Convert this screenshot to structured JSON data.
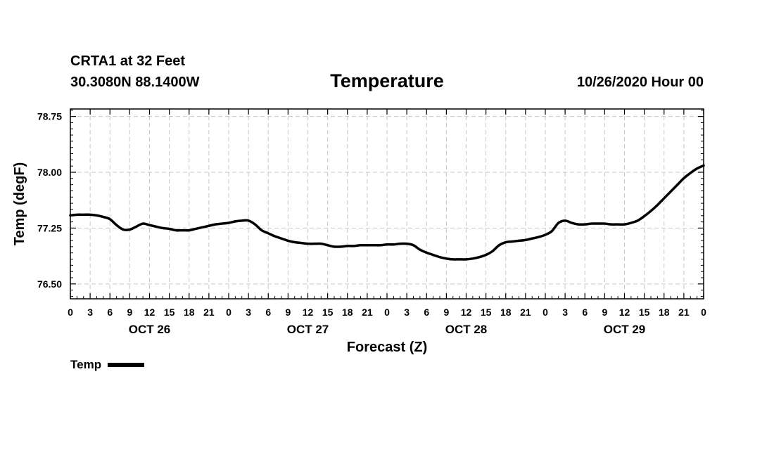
{
  "header": {
    "station": "CRTA1 at 32 Feet",
    "coords": "30.3080N 88.1400W",
    "timestamp": "10/26/2020 Hour 00"
  },
  "legend": {
    "label": "Temp"
  },
  "colors": {
    "line": "#000000",
    "grid": "#c8c8c8"
  },
  "chart_data": {
    "type": "line",
    "title": "Temperature",
    "xlabel": "Forecast (Z)",
    "ylabel": "Temp (degF)",
    "x_range_hours": [
      0,
      96
    ],
    "x_tick_step_hours": 3,
    "x_ticks": [
      "0",
      "3",
      "6",
      "9",
      "12",
      "15",
      "18",
      "21",
      "0",
      "3",
      "6",
      "9",
      "12",
      "15",
      "18",
      "21",
      "0",
      "3",
      "6",
      "9",
      "12",
      "15",
      "18",
      "21",
      "0",
      "3",
      "6",
      "9",
      "12",
      "15",
      "18",
      "21",
      "0"
    ],
    "day_labels": [
      {
        "label": "OCT 26",
        "hour": 12
      },
      {
        "label": "OCT 27",
        "hour": 36
      },
      {
        "label": "OCT 28",
        "hour": 60
      },
      {
        "label": "OCT 29",
        "hour": 84
      }
    ],
    "ylim": [
      76.3,
      78.85
    ],
    "y_ticks": [
      {
        "value": 76.5,
        "label": "76.50"
      },
      {
        "value": 77.25,
        "label": "77.25"
      },
      {
        "value": 78.0,
        "label": "78.00"
      },
      {
        "value": 78.75,
        "label": "78.75"
      }
    ],
    "grid": true,
    "legend_position": "bottom-left",
    "series": [
      {
        "name": "Temp",
        "x": [
          0,
          1,
          2,
          3,
          4,
          5,
          6,
          7,
          8,
          9,
          10,
          11,
          12,
          13,
          14,
          15,
          16,
          17,
          18,
          19,
          20,
          21,
          22,
          23,
          24,
          25,
          26,
          27,
          28,
          29,
          30,
          31,
          32,
          33,
          34,
          35,
          36,
          37,
          38,
          39,
          40,
          41,
          42,
          43,
          44,
          45,
          46,
          47,
          48,
          49,
          50,
          51,
          52,
          53,
          54,
          55,
          56,
          57,
          58,
          59,
          60,
          61,
          62,
          63,
          64,
          65,
          66,
          67,
          68,
          69,
          70,
          71,
          72,
          73,
          74,
          75,
          76,
          77,
          78,
          79,
          80,
          81,
          82,
          83,
          84,
          85,
          86,
          87,
          88,
          89,
          90,
          91,
          92,
          93,
          94,
          95,
          96
        ],
        "values": [
          77.42,
          77.43,
          77.43,
          77.43,
          77.42,
          77.4,
          77.37,
          77.29,
          77.23,
          77.23,
          77.27,
          77.31,
          77.29,
          77.27,
          77.25,
          77.24,
          77.22,
          77.22,
          77.22,
          77.24,
          77.26,
          77.28,
          77.3,
          77.31,
          77.32,
          77.34,
          77.35,
          77.35,
          77.3,
          77.22,
          77.18,
          77.14,
          77.11,
          77.08,
          77.06,
          77.05,
          77.04,
          77.04,
          77.04,
          77.02,
          77.0,
          77.0,
          77.01,
          77.01,
          77.02,
          77.02,
          77.02,
          77.02,
          77.03,
          77.03,
          77.04,
          77.04,
          77.02,
          76.96,
          76.92,
          76.89,
          76.86,
          76.84,
          76.83,
          76.83,
          76.83,
          76.84,
          76.86,
          76.89,
          76.94,
          77.02,
          77.06,
          77.07,
          77.08,
          77.09,
          77.11,
          77.13,
          77.16,
          77.21,
          77.32,
          77.35,
          77.32,
          77.3,
          77.3,
          77.31,
          77.31,
          77.31,
          77.3,
          77.3,
          77.3,
          77.32,
          77.35,
          77.41,
          77.48,
          77.56,
          77.65,
          77.74,
          77.83,
          77.92,
          77.99,
          78.05,
          78.09
        ]
      }
    ]
  }
}
